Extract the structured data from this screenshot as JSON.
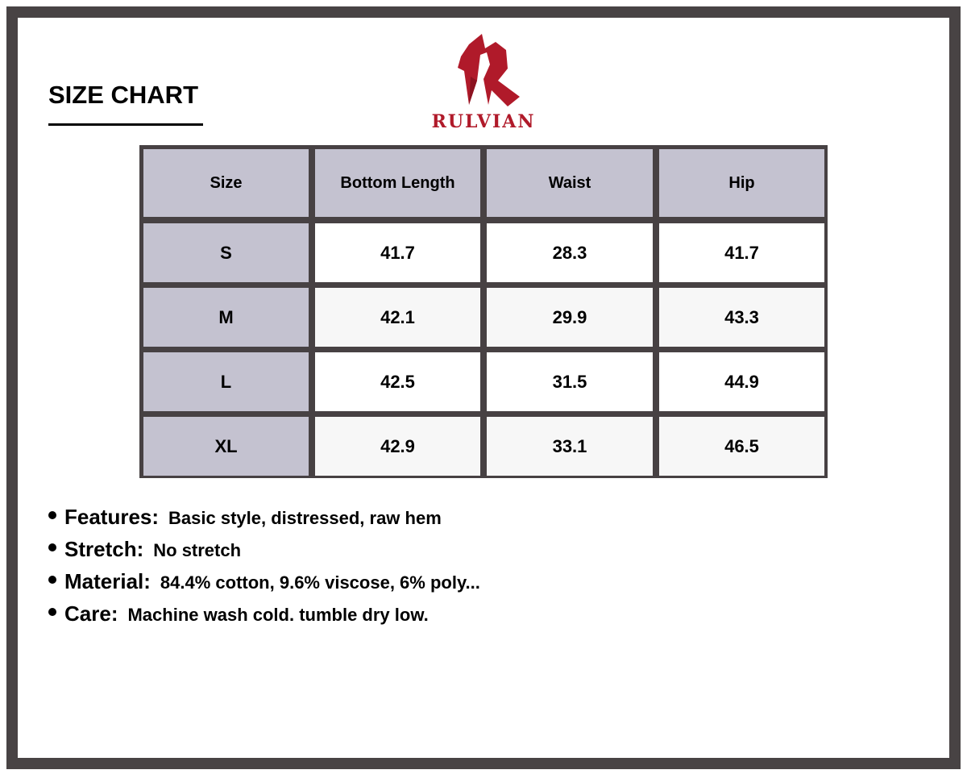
{
  "title": "SIZE CHART",
  "brand": {
    "name": "RULVIAN",
    "color": "#b01a2a"
  },
  "table": {
    "headers": [
      "Size",
      "Bottom Length",
      "Waist",
      "Hip"
    ],
    "rows": [
      [
        "S",
        "41.7",
        "28.3",
        "41.7"
      ],
      [
        "M",
        "42.1",
        "29.9",
        "43.3"
      ],
      [
        "L",
        "42.5",
        "31.5",
        "44.9"
      ],
      [
        "XL",
        "42.9",
        "33.1",
        "46.5"
      ]
    ]
  },
  "notes": [
    {
      "label": "Features:",
      "text": "Basic style, distressed, raw hem"
    },
    {
      "label": "Stretch:",
      "text": "No stretch"
    },
    {
      "label": "Material:",
      "text": "84.4% cotton, 9.6% viscose, 6% poly..."
    },
    {
      "label": "Care:",
      "text": "Machine wash cold. tumble dry low."
    }
  ]
}
